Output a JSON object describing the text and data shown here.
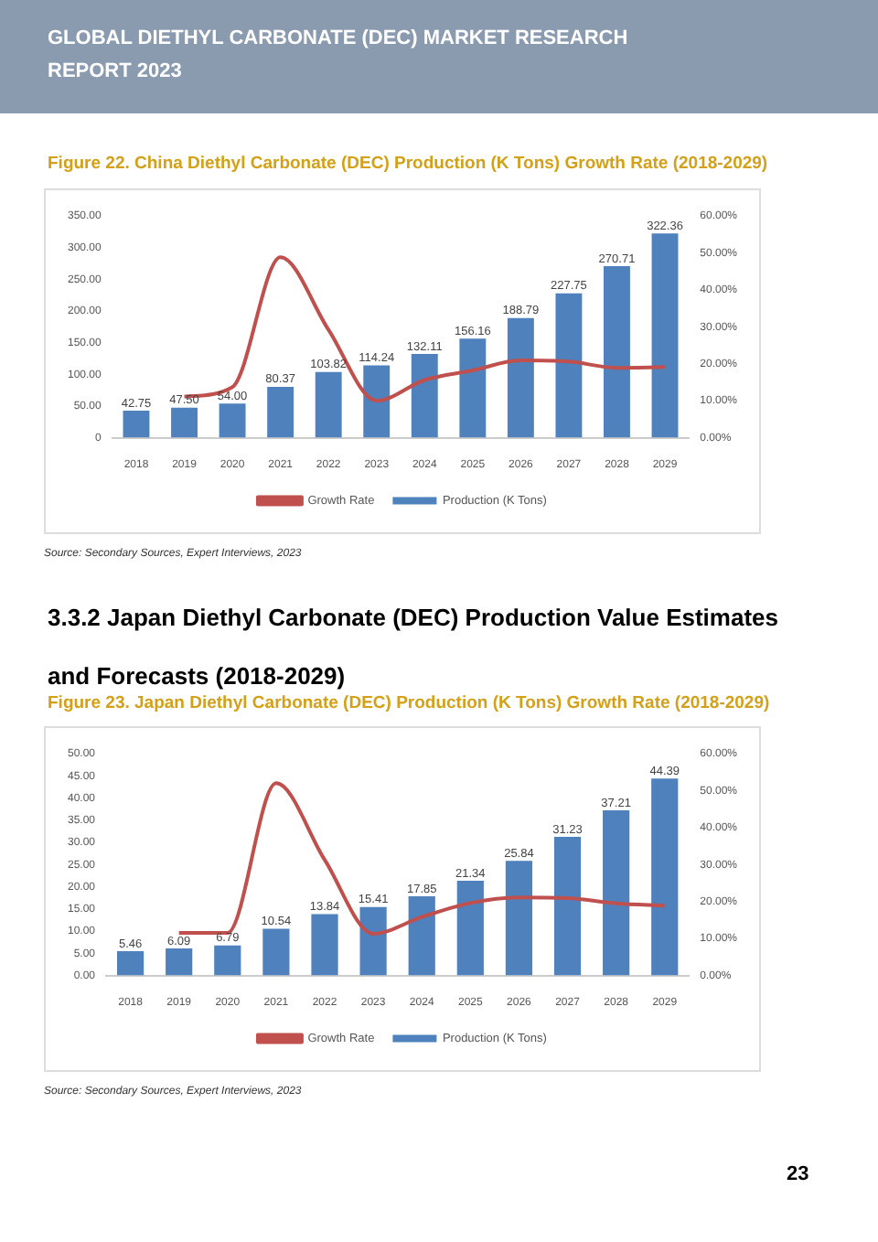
{
  "chart_data": [
    {
      "type": "bar",
      "title": "Figure 22.  China Diethyl Carbonate (DEC) Production (K Tons) Growth Rate (2018-2029)",
      "annotations": [
        "GLOBAL DIETHYL CARBONATE (DEC) MARKET RESEARCH REPORT 2023",
        "Source: Secondary Sources, Expert Interviews, 2023"
      ],
      "categories": [
        "2018",
        "2019",
        "2020",
        "2021",
        "2022",
        "2023",
        "2024",
        "2025",
        "2026",
        "2027",
        "2028",
        "2029"
      ],
      "series": [
        {
          "name": "Production (K Tons)",
          "color": "#4f81bd",
          "values": [
            42.75,
            47.5,
            54.0,
            80.37,
            103.82,
            114.24,
            132.11,
            156.16,
            188.79,
            227.75,
            270.71,
            322.36
          ],
          "value_labels": [
            "42.75",
            "47.50",
            "54.00",
            "80.37",
            "103.82",
            "114.24",
            "132.11",
            "156.16",
            "188.79",
            "227.75",
            "270.71",
            "322.36"
          ]
        },
        {
          "name": "Growth Rate",
          "type": "line",
          "axis": "y2",
          "color": "#c0504d",
          "values": [
            null,
            11.1,
            13.7,
            48.8,
            29.2,
            10.0,
            15.6,
            18.2,
            20.9,
            20.6,
            18.9,
            19.1
          ]
        }
      ],
      "ylim": [
        0,
        350
      ],
      "yticks": [
        {
          "value": 0,
          "label": "0"
        },
        {
          "value": 50,
          "label": "50.00"
        },
        {
          "value": 100,
          "label": "100.00"
        },
        {
          "value": 150,
          "label": "150.00"
        },
        {
          "value": 200,
          "label": "200.00"
        },
        {
          "value": 250,
          "label": "250.00"
        },
        {
          "value": 300,
          "label": "300.00"
        },
        {
          "value": 350,
          "label": "350.00"
        }
      ],
      "y2lim": [
        0,
        60
      ],
      "y2ticks": [
        {
          "value": 0,
          "label": "0.00%"
        },
        {
          "value": 10,
          "label": "10.00%"
        },
        {
          "value": 20,
          "label": "20.00%"
        },
        {
          "value": 30,
          "label": "30.00%"
        },
        {
          "value": 40,
          "label": "40.00%"
        },
        {
          "value": 50,
          "label": "50.00%"
        },
        {
          "value": 60,
          "label": "60.00%"
        }
      ],
      "legend": "bottom",
      "marker": "none"
    },
    {
      "type": "bar",
      "title": "Figure 23.  Japan Diethyl Carbonate (DEC) Production (K Tons) Growth Rate (2018-2029)",
      "annotations": [
        "3.3.2  Japan Diethyl Carbonate (DEC) Production Value Estimates and Forecasts (2018-2029)",
        "Source: Secondary Sources, Expert Interviews, 2023",
        "23"
      ],
      "categories": [
        "2018",
        "2019",
        "2020",
        "2021",
        "2022",
        "2023",
        "2024",
        "2025",
        "2026",
        "2027",
        "2028",
        "2029"
      ],
      "series": [
        {
          "name": "Production (K Tons)",
          "color": "#4f81bd",
          "values": [
            5.46,
            6.09,
            6.79,
            10.54,
            13.84,
            15.41,
            17.85,
            21.34,
            25.84,
            31.23,
            37.21,
            44.39
          ],
          "value_labels": [
            "5.46",
            "6.09",
            "6.79",
            "10.54",
            "13.84",
            "15.41",
            "17.85",
            "21.34",
            "25.84",
            "31.23",
            "37.21",
            "44.39"
          ]
        },
        {
          "name": "Growth Rate",
          "type": "line",
          "axis": "y2",
          "color": "#c0504d",
          "values": [
            null,
            11.5,
            11.5,
            52.0,
            31.3,
            11.3,
            15.8,
            19.6,
            21.1,
            20.9,
            19.5,
            18.9
          ]
        }
      ],
      "ylim": [
        0,
        50
      ],
      "yticks": [
        {
          "value": 0,
          "label": "0.00"
        },
        {
          "value": 5,
          "label": "5.00"
        },
        {
          "value": 10,
          "label": "10.00"
        },
        {
          "value": 15,
          "label": "15.00"
        },
        {
          "value": 20,
          "label": "20.00"
        },
        {
          "value": 25,
          "label": "25.00"
        },
        {
          "value": 30,
          "label": "30.00"
        },
        {
          "value": 35,
          "label": "35.00"
        },
        {
          "value": 40,
          "label": "40.00"
        },
        {
          "value": 45,
          "label": "45.00"
        },
        {
          "value": 50,
          "label": "50.00"
        }
      ],
      "y2lim": [
        0,
        60
      ],
      "y2ticks": [
        {
          "value": 0,
          "label": "0.00%"
        },
        {
          "value": 10,
          "label": "10.00%"
        },
        {
          "value": 20,
          "label": "20.00%"
        },
        {
          "value": 30,
          "label": "30.00%"
        },
        {
          "value": 40,
          "label": "40.00%"
        },
        {
          "value": 50,
          "label": "50.00%"
        },
        {
          "value": 60,
          "label": "60.00%"
        }
      ],
      "legend": "bottom",
      "marker": "none"
    }
  ]
}
